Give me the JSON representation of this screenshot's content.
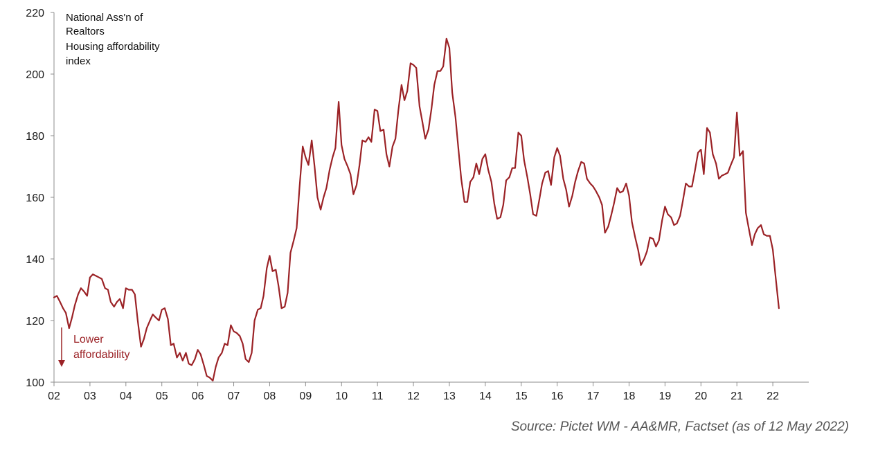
{
  "chart_data": {
    "type": "line",
    "title_lines": [
      "National Ass'n of",
      "Realtors",
      "Housing affordability",
      "index"
    ],
    "xlabel": "",
    "ylabel": "",
    "ylim": [
      100,
      220
    ],
    "yticks": [
      100,
      120,
      140,
      160,
      180,
      200,
      220
    ],
    "xlim": [
      2002,
      2023
    ],
    "xticks": [
      {
        "label": "02",
        "x": 2002
      },
      {
        "label": "03",
        "x": 2003
      },
      {
        "label": "04",
        "x": 2004
      },
      {
        "label": "05",
        "x": 2005
      },
      {
        "label": "06",
        "x": 2006
      },
      {
        "label": "07",
        "x": 2007
      },
      {
        "label": "08",
        "x": 2008
      },
      {
        "label": "09",
        "x": 2009
      },
      {
        "label": "10",
        "x": 2010
      },
      {
        "label": "11",
        "x": 2011
      },
      {
        "label": "12",
        "x": 2012
      },
      {
        "label": "13",
        "x": 2013
      },
      {
        "label": "14",
        "x": 2014
      },
      {
        "label": "15",
        "x": 2015
      },
      {
        "label": "16",
        "x": 2016
      },
      {
        "label": "17",
        "x": 2017
      },
      {
        "label": "18",
        "x": 2018
      },
      {
        "label": "19",
        "x": 2019
      },
      {
        "label": "20",
        "x": 2020
      },
      {
        "label": "21",
        "x": 2021
      },
      {
        "label": "22",
        "x": 2022
      }
    ],
    "grid": false,
    "series": [
      {
        "color": "#9b2226",
        "x": [
          2002.0,
          2002.08,
          2002.17,
          2002.25,
          2002.33,
          2002.42,
          2002.5,
          2002.58,
          2002.67,
          2002.75,
          2002.83,
          2002.92,
          2003.0,
          2003.08,
          2003.17,
          2003.25,
          2003.33,
          2003.42,
          2003.5,
          2003.58,
          2003.67,
          2003.75,
          2003.83,
          2003.92,
          2004.0,
          2004.08,
          2004.17,
          2004.25,
          2004.33,
          2004.42,
          2004.5,
          2004.58,
          2004.67,
          2004.75,
          2004.83,
          2004.92,
          2005.0,
          2005.08,
          2005.17,
          2005.25,
          2005.33,
          2005.42,
          2005.5,
          2005.58,
          2005.67,
          2005.75,
          2005.83,
          2005.92,
          2006.0,
          2006.08,
          2006.17,
          2006.25,
          2006.33,
          2006.42,
          2006.5,
          2006.58,
          2006.67,
          2006.75,
          2006.83,
          2006.92,
          2007.0,
          2007.08,
          2007.17,
          2007.25,
          2007.33,
          2007.42,
          2007.5,
          2007.58,
          2007.67,
          2007.75,
          2007.83,
          2007.92,
          2008.0,
          2008.08,
          2008.17,
          2008.25,
          2008.33,
          2008.42,
          2008.5,
          2008.58,
          2008.67,
          2008.75,
          2008.83,
          2008.92,
          2009.0,
          2009.08,
          2009.17,
          2009.25,
          2009.33,
          2009.42,
          2009.5,
          2009.58,
          2009.67,
          2009.75,
          2009.83,
          2009.92,
          2010.0,
          2010.08,
          2010.17,
          2010.25,
          2010.33,
          2010.42,
          2010.5,
          2010.58,
          2010.67,
          2010.75,
          2010.83,
          2010.92,
          2011.0,
          2011.08,
          2011.17,
          2011.25,
          2011.33,
          2011.42,
          2011.5,
          2011.58,
          2011.67,
          2011.75,
          2011.83,
          2011.92,
          2012.0,
          2012.08,
          2012.17,
          2012.25,
          2012.33,
          2012.42,
          2012.5,
          2012.58,
          2012.67,
          2012.75,
          2012.83,
          2012.92,
          2013.0,
          2013.08,
          2013.17,
          2013.25,
          2013.33,
          2013.42,
          2013.5,
          2013.58,
          2013.67,
          2013.75,
          2013.83,
          2013.92,
          2014.0,
          2014.08,
          2014.17,
          2014.25,
          2014.33,
          2014.42,
          2014.5,
          2014.58,
          2014.67,
          2014.75,
          2014.83,
          2014.92,
          2015.0,
          2015.08,
          2015.17,
          2015.25,
          2015.33,
          2015.42,
          2015.5,
          2015.58,
          2015.67,
          2015.75,
          2015.83,
          2015.92,
          2016.0,
          2016.08,
          2016.17,
          2016.25,
          2016.33,
          2016.42,
          2016.5,
          2016.58,
          2016.67,
          2016.75,
          2016.83,
          2016.92,
          2017.0,
          2017.08,
          2017.17,
          2017.25,
          2017.33,
          2017.42,
          2017.5,
          2017.58,
          2017.67,
          2017.75,
          2017.83,
          2017.92,
          2018.0,
          2018.08,
          2018.17,
          2018.25,
          2018.33,
          2018.42,
          2018.5,
          2018.58,
          2018.67,
          2018.75,
          2018.83,
          2018.92,
          2019.0,
          2019.08,
          2019.17,
          2019.25,
          2019.33,
          2019.42,
          2019.5,
          2019.58,
          2019.67,
          2019.75,
          2019.83,
          2019.92,
          2020.0,
          2020.08,
          2020.17,
          2020.25,
          2020.33,
          2020.42,
          2020.5,
          2020.58,
          2020.67,
          2020.75,
          2020.83,
          2020.92,
          2021.0,
          2021.08,
          2021.17,
          2021.25,
          2021.33,
          2021.42,
          2021.5,
          2021.58,
          2021.67,
          2021.75,
          2021.83,
          2021.92,
          2022.0,
          2022.08,
          2022.17
        ],
        "values": [
          127.5,
          128.0,
          126.0,
          124.0,
          122.5,
          117.5,
          121.0,
          125.0,
          128.5,
          130.5,
          129.5,
          128.0,
          134.0,
          135.0,
          134.5,
          134.0,
          133.5,
          130.5,
          130.0,
          126.0,
          124.5,
          126.0,
          127.0,
          124.0,
          130.5,
          130.0,
          130.0,
          128.5,
          120.0,
          111.5,
          114.0,
          117.5,
          120.0,
          122.0,
          121.0,
          120.0,
          123.5,
          124.0,
          120.5,
          112.0,
          112.5,
          108.0,
          109.5,
          107.0,
          109.5,
          106.0,
          105.5,
          107.5,
          110.5,
          109.0,
          105.5,
          102.0,
          101.5,
          100.5,
          105.0,
          108.0,
          109.5,
          112.5,
          112.0,
          118.5,
          116.5,
          116.0,
          115.0,
          112.5,
          107.5,
          106.5,
          109.5,
          120.0,
          123.5,
          124.0,
          128.0,
          137.0,
          141.0,
          136.0,
          136.5,
          131.0,
          124.0,
          124.5,
          129.0,
          142.0,
          146.0,
          150.0,
          163.0,
          176.5,
          173.0,
          170.5,
          178.5,
          170.0,
          160.0,
          156.0,
          160.0,
          163.0,
          169.0,
          173.0,
          176.0,
          191.0,
          177.0,
          172.5,
          170.0,
          167.5,
          161.0,
          164.0,
          170.5,
          178.5,
          178.0,
          179.5,
          178.0,
          188.5,
          188.0,
          181.5,
          182.0,
          174.0,
          170.0,
          176.5,
          179.0,
          188.0,
          196.5,
          191.5,
          194.5,
          203.5,
          203.0,
          202.0,
          189.5,
          184.5,
          179.0,
          182.0,
          188.5,
          196.5,
          201.0,
          201.0,
          202.5,
          211.5,
          208.5,
          194.0,
          186.0,
          176.0,
          166.0,
          158.5,
          158.5,
          165.0,
          166.5,
          171.0,
          167.5,
          172.5,
          174.0,
          169.0,
          165.0,
          158.0,
          153.0,
          153.5,
          157.5,
          165.5,
          166.5,
          169.5,
          169.5,
          181.0,
          180.0,
          172.0,
          166.5,
          161.0,
          154.5,
          154.0,
          159.0,
          164.5,
          168.0,
          168.5,
          164.0,
          173.0,
          176.0,
          173.5,
          166.0,
          162.5,
          157.0,
          160.5,
          165.0,
          168.5,
          171.5,
          171.0,
          166.0,
          164.5,
          163.5,
          162.0,
          160.0,
          157.5,
          148.5,
          150.5,
          154.0,
          158.0,
          163.0,
          161.5,
          162.0,
          164.5,
          160.5,
          152.0,
          147.0,
          143.0,
          138.0,
          140.0,
          142.5,
          147.0,
          146.5,
          144.0,
          146.0,
          152.5,
          157.0,
          154.5,
          153.5,
          151.0,
          151.5,
          154.0,
          159.0,
          164.5,
          163.5,
          163.5,
          168.5,
          174.5,
          175.5,
          167.5,
          182.5,
          181.0,
          174.0,
          171.0,
          166.0,
          167.0,
          167.5,
          168.0,
          170.5,
          173.0,
          187.5,
          173.5,
          175.0,
          155.0,
          150.0,
          144.5,
          148.0,
          150.0,
          151.0,
          148.0,
          147.5,
          147.5,
          143.0,
          134.0,
          124.0
        ]
      }
    ],
    "annotation": {
      "lines": [
        "Lower",
        "affordability"
      ],
      "arrow": "down",
      "color": "#9b2226"
    },
    "source": "Source: Pictet WM - AA&MR, Factset (as of 12 May 2022)"
  }
}
